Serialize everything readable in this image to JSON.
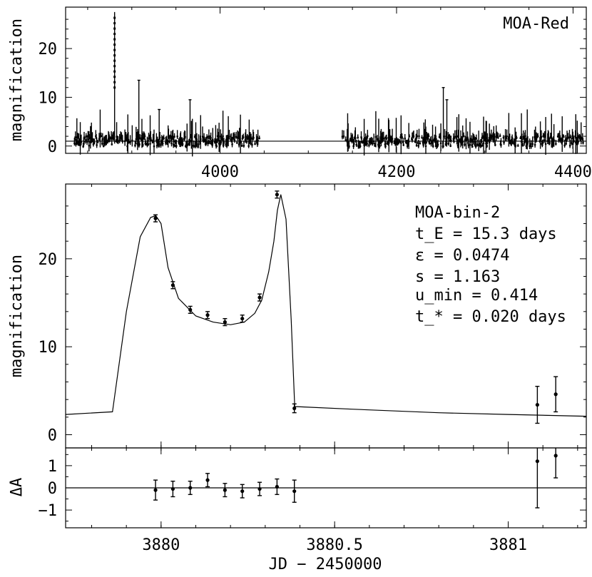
{
  "chart_data": [
    {
      "type": "scatter",
      "panel": "top",
      "label": "MOA-Red",
      "ylabel": "magnification",
      "xlim": [
        3825,
        4415
      ],
      "ylim": [
        -1.5,
        28.5
      ],
      "xticks": [
        4000,
        4200,
        4400
      ],
      "xtick_labels": [
        "4000",
        "4200",
        "4400"
      ],
      "yticks": [
        0,
        10,
        20
      ],
      "ytick_labels": [
        "0",
        "10",
        "20"
      ],
      "baseline": 1.0,
      "seasons": [
        [
          3835,
          4045
        ],
        [
          4138,
          4412
        ]
      ],
      "peaks": [
        {
          "x": 3880.2,
          "y": 24.5
        },
        {
          "x": 3880.25,
          "y": 27.2
        },
        {
          "x": 3880.15,
          "y": 17.0
        },
        {
          "x": 3908,
          "y": 13.5
        },
        {
          "x": 3931,
          "y": 7.5
        },
        {
          "x": 3966,
          "y": 9.5
        },
        {
          "x": 4253,
          "y": 12.0
        },
        {
          "x": 4257,
          "y": 9.5
        }
      ]
    },
    {
      "type": "line",
      "panel": "middle",
      "label": "MOA-bin-2",
      "ylabel": "magnification",
      "xlim": [
        3879.725,
        3881.225
      ],
      "ylim": [
        -1.5,
        28.5
      ],
      "yticks": [
        0,
        10,
        20
      ],
      "ytick_labels": [
        "0",
        "10",
        "20"
      ],
      "params_lines": [
        "t_E = 15.3 days",
        "ε = 0.0474",
        "s = 1.163",
        "u_min = 0.414",
        "t_* = 0.020 days"
      ],
      "model_curve": {
        "x": [
          3879.725,
          3879.86,
          3879.9,
          3879.94,
          3879.97,
          3879.985,
          3880.0,
          3880.02,
          3880.05,
          3880.1,
          3880.15,
          3880.2,
          3880.24,
          3880.27,
          3880.29,
          3880.31,
          3880.325,
          3880.335,
          3880.345,
          3880.36,
          3880.375,
          3880.385,
          3880.55,
          3880.8,
          3881.0,
          3881.225
        ],
        "y": [
          2.3,
          2.6,
          14.0,
          22.5,
          24.7,
          24.9,
          24.0,
          19.0,
          15.5,
          13.5,
          12.8,
          12.5,
          12.8,
          13.8,
          15.3,
          18.5,
          22.0,
          25.5,
          27.3,
          24.5,
          13.0,
          3.2,
          2.9,
          2.5,
          2.3,
          2.1
        ]
      },
      "points": [
        {
          "x": 3879.984,
          "y": 24.6,
          "err": 0.4
        },
        {
          "x": 3880.034,
          "y": 17.0,
          "err": 0.4
        },
        {
          "x": 3880.084,
          "y": 14.2,
          "err": 0.4
        },
        {
          "x": 3880.134,
          "y": 13.6,
          "err": 0.4
        },
        {
          "x": 3880.184,
          "y": 12.8,
          "err": 0.4
        },
        {
          "x": 3880.234,
          "y": 13.2,
          "err": 0.4
        },
        {
          "x": 3880.284,
          "y": 15.6,
          "err": 0.4
        },
        {
          "x": 3880.334,
          "y": 27.3,
          "err": 0.4
        },
        {
          "x": 3880.384,
          "y": 3.0,
          "err": 0.5
        },
        {
          "x": 3881.084,
          "y": 3.4,
          "err": 2.1
        },
        {
          "x": 3881.137,
          "y": 4.6,
          "err": 2.0
        }
      ]
    },
    {
      "type": "scatter",
      "panel": "bottom",
      "ylabel": "ΔA",
      "xlabel": "JD − 2450000",
      "xlim": [
        3879.725,
        3881.225
      ],
      "ylim": [
        -1.8,
        1.8
      ],
      "xticks": [
        3880,
        3880.5,
        3881
      ],
      "xtick_labels": [
        "3880",
        "3880.5",
        "3881"
      ],
      "yticks": [
        -1,
        0,
        1
      ],
      "ytick_labels": [
        "−1",
        "0",
        "1"
      ],
      "points": [
        {
          "x": 3879.984,
          "y": -0.1,
          "err": 0.45
        },
        {
          "x": 3880.034,
          "y": -0.05,
          "err": 0.35
        },
        {
          "x": 3880.084,
          "y": 0.0,
          "err": 0.3
        },
        {
          "x": 3880.134,
          "y": 0.35,
          "err": 0.3
        },
        {
          "x": 3880.184,
          "y": -0.1,
          "err": 0.3
        },
        {
          "x": 3880.234,
          "y": -0.15,
          "err": 0.3
        },
        {
          "x": 3880.284,
          "y": -0.05,
          "err": 0.3
        },
        {
          "x": 3880.334,
          "y": 0.05,
          "err": 0.35
        },
        {
          "x": 3880.384,
          "y": -0.15,
          "err": 0.5
        },
        {
          "x": 3881.084,
          "y": 1.2,
          "err": 2.1
        },
        {
          "x": 3881.137,
          "y": 1.45,
          "err": 1.0
        }
      ]
    }
  ]
}
